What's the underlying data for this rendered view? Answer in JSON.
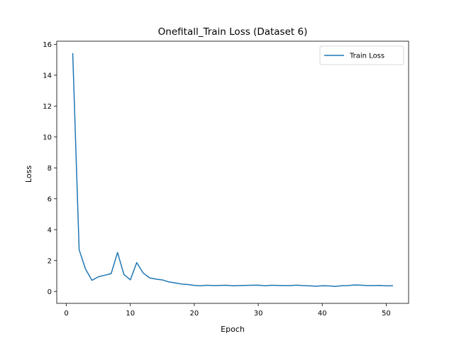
{
  "chart_data": {
    "type": "line",
    "title": "Onefitall_Train Loss  (Dataset 6)",
    "xlabel": "Epoch",
    "ylabel": "Loss",
    "xlim": [
      -1.5,
      53.5
    ],
    "ylim": [
      -0.77,
      16.2
    ],
    "xticks": [
      0,
      10,
      20,
      30,
      40,
      50
    ],
    "yticks": [
      0,
      2,
      4,
      6,
      8,
      10,
      12,
      14,
      16
    ],
    "grid": false,
    "legend_position": "top-right",
    "series": [
      {
        "name": "Train Loss",
        "color": "#1f77b4",
        "x": [
          1,
          2,
          3,
          4,
          5,
          6,
          7,
          8,
          9,
          10,
          11,
          12,
          13,
          14,
          15,
          16,
          17,
          18,
          19,
          20,
          21,
          22,
          23,
          24,
          25,
          26,
          27,
          28,
          29,
          30,
          31,
          32,
          33,
          34,
          35,
          36,
          37,
          38,
          39,
          40,
          41,
          42,
          43,
          44,
          45,
          46,
          47,
          48,
          49,
          50,
          51
        ],
        "y": [
          15.4,
          2.7,
          1.45,
          0.72,
          0.95,
          1.05,
          1.15,
          2.52,
          1.1,
          0.75,
          1.87,
          1.2,
          0.88,
          0.8,
          0.75,
          0.62,
          0.55,
          0.48,
          0.45,
          0.39,
          0.37,
          0.4,
          0.38,
          0.39,
          0.4,
          0.37,
          0.38,
          0.39,
          0.4,
          0.41,
          0.37,
          0.4,
          0.39,
          0.38,
          0.38,
          0.41,
          0.38,
          0.36,
          0.34,
          0.37,
          0.36,
          0.33,
          0.37,
          0.38,
          0.42,
          0.41,
          0.38,
          0.38,
          0.39,
          0.36,
          0.37
        ]
      }
    ]
  }
}
